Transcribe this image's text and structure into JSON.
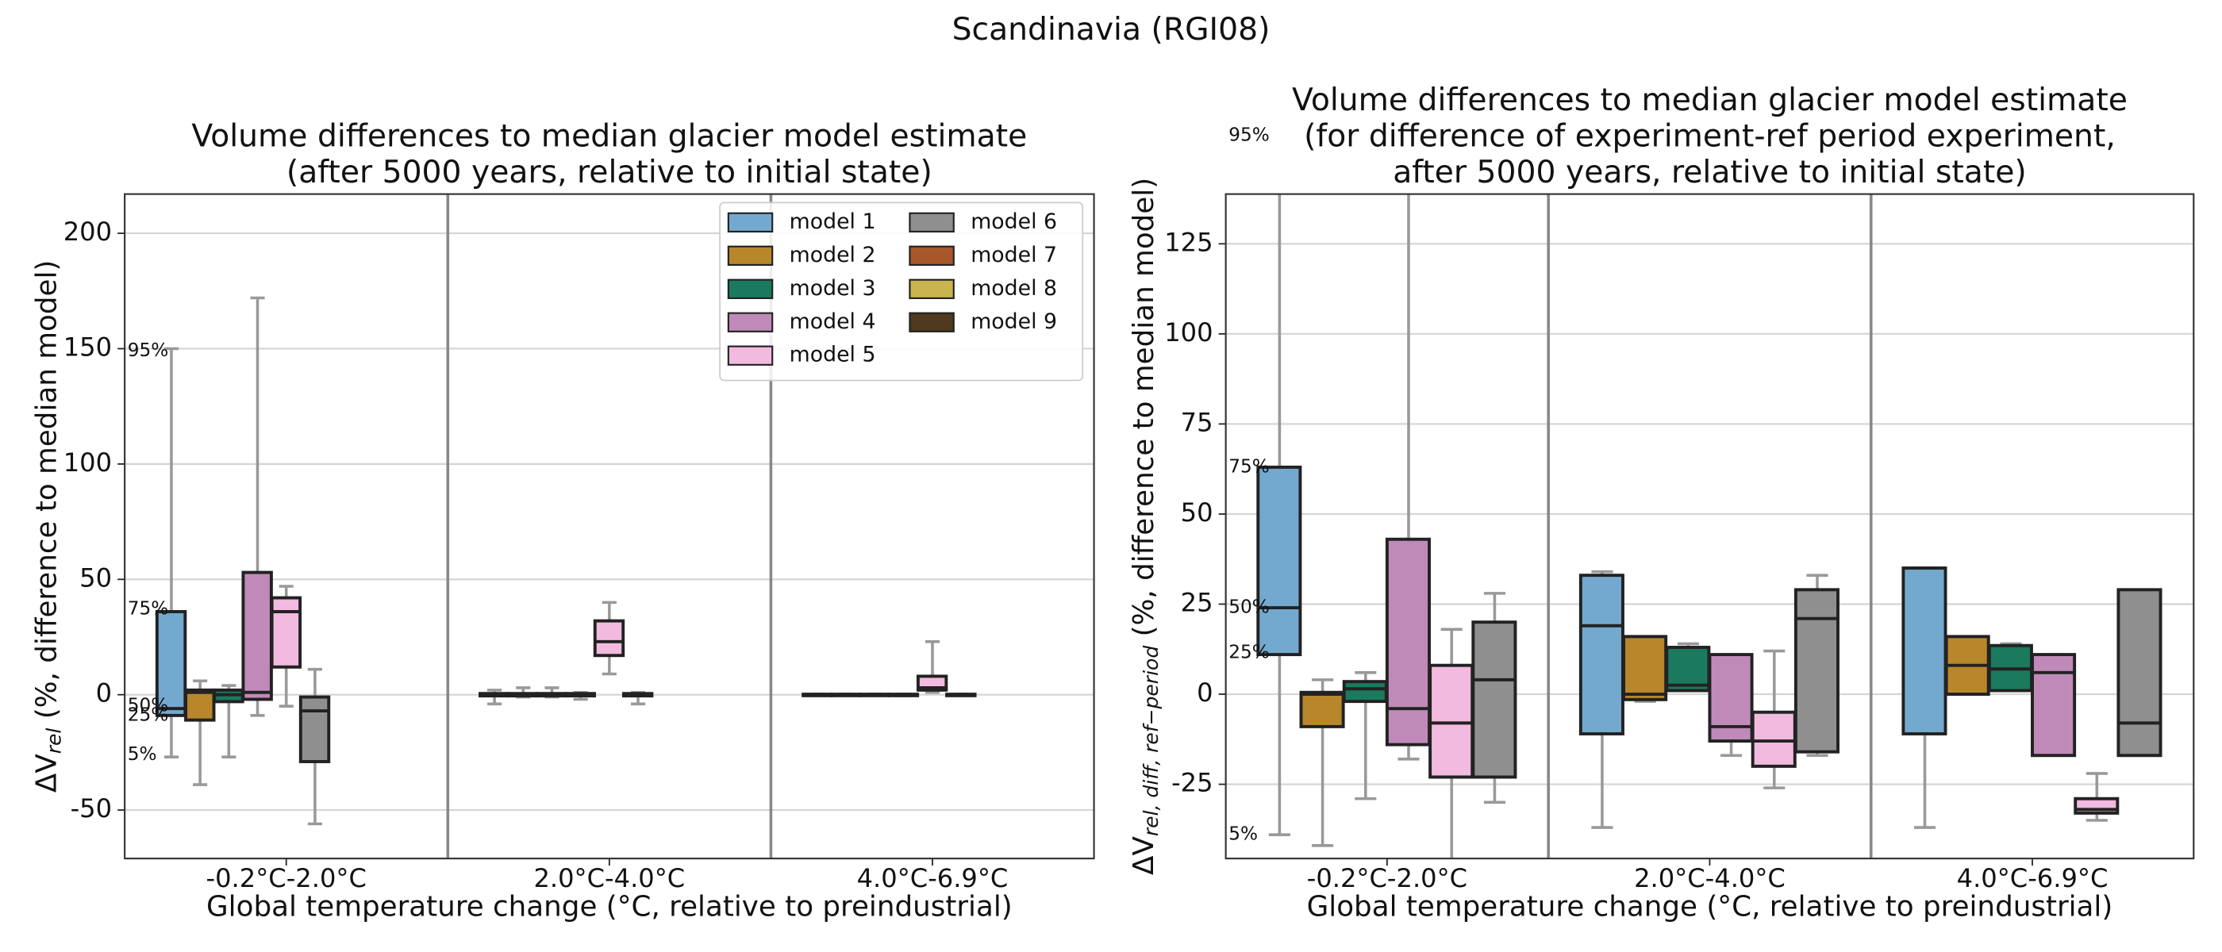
{
  "suptitle": "Scandinavia (RGI08)",
  "chart_data": [
    {
      "type": "box",
      "title": [
        "Volume differences to median glacier model estimate",
        "(after 5000 years, relative to initial state)"
      ],
      "xlabel": "Global temperature change (°C, relative to preindustrial)",
      "ylabel": [
        "ΔV",
        "rel",
        " (%, difference to median model)"
      ],
      "categories": [
        "-0.2°C-2.0°C",
        "2.0°C-4.0°C",
        "4.0°C-6.9°C"
      ],
      "ylim": [
        -71,
        217
      ],
      "yticks": [
        -50,
        0,
        50,
        100,
        150,
        200
      ],
      "grid": true,
      "legend": "upper right",
      "legend_columns": 2,
      "annotations": [
        {
          "text": "95%",
          "y": 149
        },
        {
          "text": "75%",
          "y": 37
        },
        {
          "text": "50%",
          "y": -5
        },
        {
          "text": "25%",
          "y": -9
        },
        {
          "text": "5%",
          "y": -26
        }
      ],
      "series": [
        {
          "name": "model 1",
          "color": "#74a9cf",
          "boxes": [
            {
              "whislo": -27,
              "q1": -9,
              "med": -6,
              "q3": 36,
              "whishi": 150
            },
            {
              "whislo": -4,
              "q1": -0.5,
              "med": 0,
              "q3": 0.5,
              "whishi": 2
            },
            {
              "whislo": -0.3,
              "q1": -0.2,
              "med": 0,
              "q3": 0.2,
              "whishi": 0.3
            }
          ]
        },
        {
          "name": "model 2",
          "color": "#b8862b",
          "boxes": [
            {
              "whislo": -39,
              "q1": -11,
              "med": 1,
              "q3": 2,
              "whishi": 6
            },
            {
              "whislo": -1,
              "q1": -0.5,
              "med": 0,
              "q3": 0.5,
              "whishi": 3
            },
            {
              "whislo": -0.3,
              "q1": -0.2,
              "med": 0,
              "q3": 0.2,
              "whishi": 0.3
            }
          ]
        },
        {
          "name": "model 3",
          "color": "#1b7a5e",
          "boxes": [
            {
              "whislo": -27,
              "q1": -3,
              "med": 0,
              "q3": 2,
              "whishi": 4
            },
            {
              "whislo": -1,
              "q1": -0.5,
              "med": 0,
              "q3": 0.5,
              "whishi": 3
            },
            {
              "whislo": -0.3,
              "q1": -0.2,
              "med": 0,
              "q3": 0.2,
              "whishi": 0.3
            }
          ]
        },
        {
          "name": "model 4",
          "color": "#c08ab8",
          "boxes": [
            {
              "whislo": -9,
              "q1": -2,
              "med": 1,
              "q3": 53,
              "whishi": 172
            },
            {
              "whislo": -2,
              "q1": -0.5,
              "med": 0,
              "q3": 0.5,
              "whishi": 1
            },
            {
              "whislo": -0.5,
              "q1": -0.2,
              "med": 0,
              "q3": 0.2,
              "whishi": 0.3
            }
          ]
        },
        {
          "name": "model 5",
          "color": "#f1bade",
          "boxes": [
            {
              "whislo": -5,
              "q1": 12,
              "med": 36,
              "q3": 42,
              "whishi": 47
            },
            {
              "whislo": 9,
              "q1": 17,
              "med": 23,
              "q3": 32,
              "whishi": 40
            },
            {
              "whislo": 1,
              "q1": 2,
              "med": 3,
              "q3": 8,
              "whishi": 23
            }
          ]
        },
        {
          "name": "model 6",
          "color": "#8f8f8f",
          "boxes": [
            {
              "whislo": -56,
              "q1": -29,
              "med": -7,
              "q3": -1,
              "whishi": 11
            },
            {
              "whislo": -4,
              "q1": -0.5,
              "med": 0,
              "q3": 0.5,
              "whishi": 1
            },
            {
              "whislo": -0.3,
              "q1": -0.2,
              "med": 0,
              "q3": 0.2,
              "whishi": 0.3
            }
          ]
        },
        {
          "name": "model 7",
          "color": "#a8572a",
          "boxes": [
            null,
            null,
            null
          ]
        },
        {
          "name": "model 8",
          "color": "#c9b44e",
          "boxes": [
            null,
            null,
            null
          ]
        },
        {
          "name": "model 9",
          "color": "#4f3a1e",
          "boxes": [
            null,
            null,
            null
          ]
        }
      ]
    },
    {
      "type": "box",
      "title": [
        "Volume differences to median glacier model estimate",
        "(for difference of experiment-ref period experiment,",
        "after 5000 years, relative to initial state)"
      ],
      "xlabel": "Global temperature change (°C, relative to preindustrial)",
      "ylabel": [
        "ΔV",
        "rel, diff, ref−period",
        " (%, difference to median model)"
      ],
      "categories": [
        "-0.2°C-2.0°C",
        "2.0°C-4.0°C",
        "4.0°C-6.9°C"
      ],
      "ylim": [
        -45.6,
        138.8
      ],
      "yticks": [
        -25,
        0,
        25,
        50,
        75,
        100,
        125
      ],
      "grid": true,
      "annotations": [
        {
          "text": "95%",
          "y": 155
        },
        {
          "text": "75%",
          "y": 63
        },
        {
          "text": "50%",
          "y": 24
        },
        {
          "text": "25%",
          "y": 11.5
        },
        {
          "text": "5%",
          "y": -39
        }
      ],
      "series": [
        {
          "color": "#74a9cf",
          "boxes": [
            {
              "whislo": -39,
              "q1": 11,
              "med": 24,
              "q3": 63,
              "whishi": 155
            },
            {
              "whislo": -37,
              "q1": -11,
              "med": 19,
              "q3": 33,
              "whishi": 34
            },
            {
              "whislo": -37,
              "q1": -11,
              "med": 35,
              "q3": 35,
              "whishi": 35
            }
          ]
        },
        {
          "color": "#b8862b",
          "boxes": [
            {
              "whislo": -42,
              "q1": -9,
              "med": 0,
              "q3": 0.5,
              "whishi": 4
            },
            {
              "whislo": -2,
              "q1": -1.5,
              "med": 0,
              "q3": 16,
              "whishi": 16
            },
            {
              "whislo": 0,
              "q1": 0,
              "med": 8,
              "q3": 16,
              "whishi": 16
            }
          ]
        },
        {
          "color": "#1b7a5e",
          "boxes": [
            {
              "whislo": -29,
              "q1": -2,
              "med": 1.5,
              "q3": 3.5,
              "whishi": 6
            },
            {
              "whislo": 1,
              "q1": 1,
              "med": 2.5,
              "q3": 13,
              "whishi": 14
            },
            {
              "whislo": 1,
              "q1": 1,
              "med": 7,
              "q3": 13.5,
              "whishi": 14
            }
          ]
        },
        {
          "color": "#c08ab8",
          "boxes": [
            {
              "whislo": -18,
              "q1": -14,
              "med": -4,
              "q3": 43,
              "whishi": 150
            },
            {
              "whislo": -17,
              "q1": -13,
              "med": -9,
              "q3": 11,
              "whishi": 11
            },
            {
              "whislo": -17,
              "q1": -17,
              "med": 6,
              "q3": 11,
              "whishi": 11
            }
          ]
        },
        {
          "color": "#f1bade",
          "boxes": [
            {
              "whislo": -50,
              "q1": -23,
              "med": -8,
              "q3": 8,
              "whishi": 18
            },
            {
              "whislo": -26,
              "q1": -20,
              "med": -13,
              "q3": -5,
              "whishi": 12
            },
            {
              "whislo": -35,
              "q1": -33,
              "med": -32,
              "q3": -29,
              "whishi": -22
            }
          ]
        },
        {
          "color": "#8f8f8f",
          "boxes": [
            {
              "whislo": -30,
              "q1": -23,
              "med": 4,
              "q3": 20,
              "whishi": 28
            },
            {
              "whislo": -17,
              "q1": -16,
              "med": 21,
              "q3": 29,
              "whishi": 33
            },
            {
              "whislo": -17,
              "q1": -17,
              "med": -8,
              "q3": 29,
              "whishi": 29
            }
          ]
        }
      ]
    }
  ]
}
